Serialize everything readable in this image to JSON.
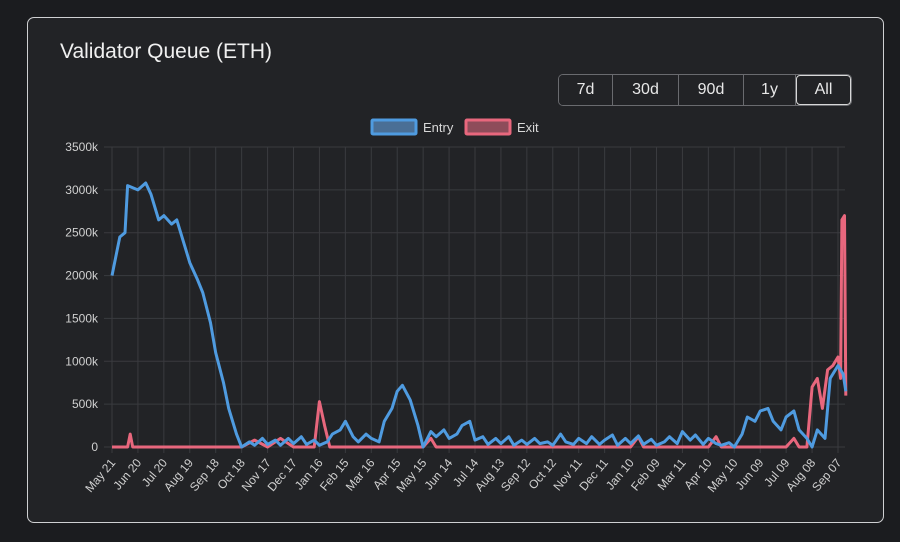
{
  "title": "Validator Queue (ETH)",
  "ranges": [
    "7d",
    "30d",
    "90d",
    "1y",
    "All"
  ],
  "active_range": "All",
  "chart_data": {
    "type": "line",
    "title": "Validator Queue (ETH)",
    "categories": [
      "May 21",
      "Jun 20",
      "Jul 20",
      "Aug 19",
      "Sep 18",
      "Oct 18",
      "Nov 17",
      "Dec 17",
      "Jan 16",
      "Feb 15",
      "Mar 16",
      "Apr 15",
      "May 15",
      "Jun 14",
      "Jul 14",
      "Aug 13",
      "Sep 12",
      "Oct 12",
      "Nov 11",
      "Dec 11",
      "Jan 10",
      "Feb 09",
      "Mar 11",
      "Apr 10",
      "May 10",
      "Jun 09",
      "Jul 09",
      "Aug 08",
      "Sep 07"
    ],
    "yticks": [
      "0",
      "500k",
      "1000k",
      "1500k",
      "2000k",
      "2500k",
      "3000k",
      "3500k"
    ],
    "ylim": [
      0,
      3500
    ],
    "yunit": "k ETH",
    "legend_position": "top",
    "grid": true,
    "series": [
      {
        "name": "Entry",
        "color": "#4f9be0",
        "points": [
          [
            0,
            2000
          ],
          [
            0.3,
            2450
          ],
          [
            0.5,
            2500
          ],
          [
            0.6,
            3050
          ],
          [
            1,
            3000
          ],
          [
            1.3,
            3080
          ],
          [
            1.5,
            2950
          ],
          [
            1.8,
            2650
          ],
          [
            2,
            2700
          ],
          [
            2.3,
            2600
          ],
          [
            2.5,
            2650
          ],
          [
            2.8,
            2350
          ],
          [
            3,
            2150
          ],
          [
            3.3,
            1950
          ],
          [
            3.5,
            1800
          ],
          [
            3.8,
            1450
          ],
          [
            4,
            1100
          ],
          [
            4.3,
            750
          ],
          [
            4.5,
            450
          ],
          [
            4.8,
            150
          ],
          [
            5,
            0
          ],
          [
            5.3,
            60
          ],
          [
            5.5,
            20
          ],
          [
            5.8,
            100
          ],
          [
            6,
            30
          ],
          [
            6.3,
            80
          ],
          [
            6.5,
            20
          ],
          [
            6.8,
            100
          ],
          [
            7,
            40
          ],
          [
            7.3,
            120
          ],
          [
            7.5,
            30
          ],
          [
            7.8,
            80
          ],
          [
            8,
            20
          ],
          [
            8.3,
            60
          ],
          [
            8.5,
            150
          ],
          [
            8.8,
            200
          ],
          [
            9,
            300
          ],
          [
            9.3,
            120
          ],
          [
            9.5,
            60
          ],
          [
            9.8,
            150
          ],
          [
            10,
            100
          ],
          [
            10.3,
            60
          ],
          [
            10.5,
            300
          ],
          [
            10.8,
            450
          ],
          [
            11,
            650
          ],
          [
            11.2,
            720
          ],
          [
            11.5,
            550
          ],
          [
            11.8,
            250
          ],
          [
            12,
            0
          ],
          [
            12.3,
            180
          ],
          [
            12.5,
            120
          ],
          [
            12.8,
            200
          ],
          [
            13,
            100
          ],
          [
            13.3,
            150
          ],
          [
            13.5,
            250
          ],
          [
            13.8,
            300
          ],
          [
            14,
            80
          ],
          [
            14.3,
            120
          ],
          [
            14.5,
            30
          ],
          [
            14.8,
            100
          ],
          [
            15,
            40
          ],
          [
            15.3,
            120
          ],
          [
            15.5,
            20
          ],
          [
            15.8,
            80
          ],
          [
            16,
            30
          ],
          [
            16.3,
            100
          ],
          [
            16.5,
            40
          ],
          [
            16.8,
            60
          ],
          [
            17,
            20
          ],
          [
            17.3,
            150
          ],
          [
            17.5,
            60
          ],
          [
            17.8,
            30
          ],
          [
            18,
            100
          ],
          [
            18.3,
            40
          ],
          [
            18.5,
            120
          ],
          [
            18.8,
            30
          ],
          [
            19,
            80
          ],
          [
            19.3,
            140
          ],
          [
            19.5,
            20
          ],
          [
            19.8,
            100
          ],
          [
            20,
            40
          ],
          [
            20.3,
            130
          ],
          [
            20.5,
            30
          ],
          [
            20.8,
            90
          ],
          [
            21,
            20
          ],
          [
            21.3,
            60
          ],
          [
            21.5,
            120
          ],
          [
            21.8,
            40
          ],
          [
            22,
            180
          ],
          [
            22.3,
            80
          ],
          [
            22.5,
            140
          ],
          [
            22.8,
            30
          ],
          [
            23,
            100
          ],
          [
            23.3,
            40
          ],
          [
            23.5,
            20
          ],
          [
            23.8,
            50
          ],
          [
            24,
            0
          ],
          [
            24.3,
            150
          ],
          [
            24.5,
            350
          ],
          [
            24.8,
            300
          ],
          [
            25,
            420
          ],
          [
            25.3,
            450
          ],
          [
            25.5,
            300
          ],
          [
            25.8,
            200
          ],
          [
            26,
            350
          ],
          [
            26.3,
            420
          ],
          [
            26.5,
            200
          ],
          [
            26.8,
            100
          ],
          [
            27,
            0
          ],
          [
            27.2,
            200
          ],
          [
            27.5,
            100
          ],
          [
            27.7,
            800
          ],
          [
            28,
            950
          ],
          [
            28.2,
            850
          ],
          [
            28.3,
            650
          ]
        ]
      },
      {
        "name": "Exit",
        "color": "#e8677d",
        "points": [
          [
            0,
            0
          ],
          [
            0.6,
            0
          ],
          [
            0.7,
            150
          ],
          [
            0.8,
            0
          ],
          [
            5,
            0
          ],
          [
            5.5,
            80
          ],
          [
            6,
            0
          ],
          [
            6.5,
            100
          ],
          [
            7,
            0
          ],
          [
            7.8,
            0
          ],
          [
            8,
            530
          ],
          [
            8.2,
            250
          ],
          [
            8.4,
            0
          ],
          [
            11,
            0
          ],
          [
            12,
            0
          ],
          [
            12.3,
            100
          ],
          [
            12.5,
            0
          ],
          [
            20,
            0
          ],
          [
            20.3,
            120
          ],
          [
            20.5,
            0
          ],
          [
            23,
            0
          ],
          [
            23.3,
            120
          ],
          [
            23.5,
            0
          ],
          [
            26,
            0
          ],
          [
            26.3,
            100
          ],
          [
            26.5,
            0
          ],
          [
            26.8,
            0
          ],
          [
            27,
            700
          ],
          [
            27.2,
            800
          ],
          [
            27.4,
            450
          ],
          [
            27.6,
            900
          ],
          [
            27.8,
            950
          ],
          [
            28,
            1050
          ],
          [
            28.1,
            800
          ],
          [
            28.15,
            2650
          ],
          [
            28.25,
            2700
          ],
          [
            28.3,
            600
          ]
        ]
      }
    ]
  }
}
